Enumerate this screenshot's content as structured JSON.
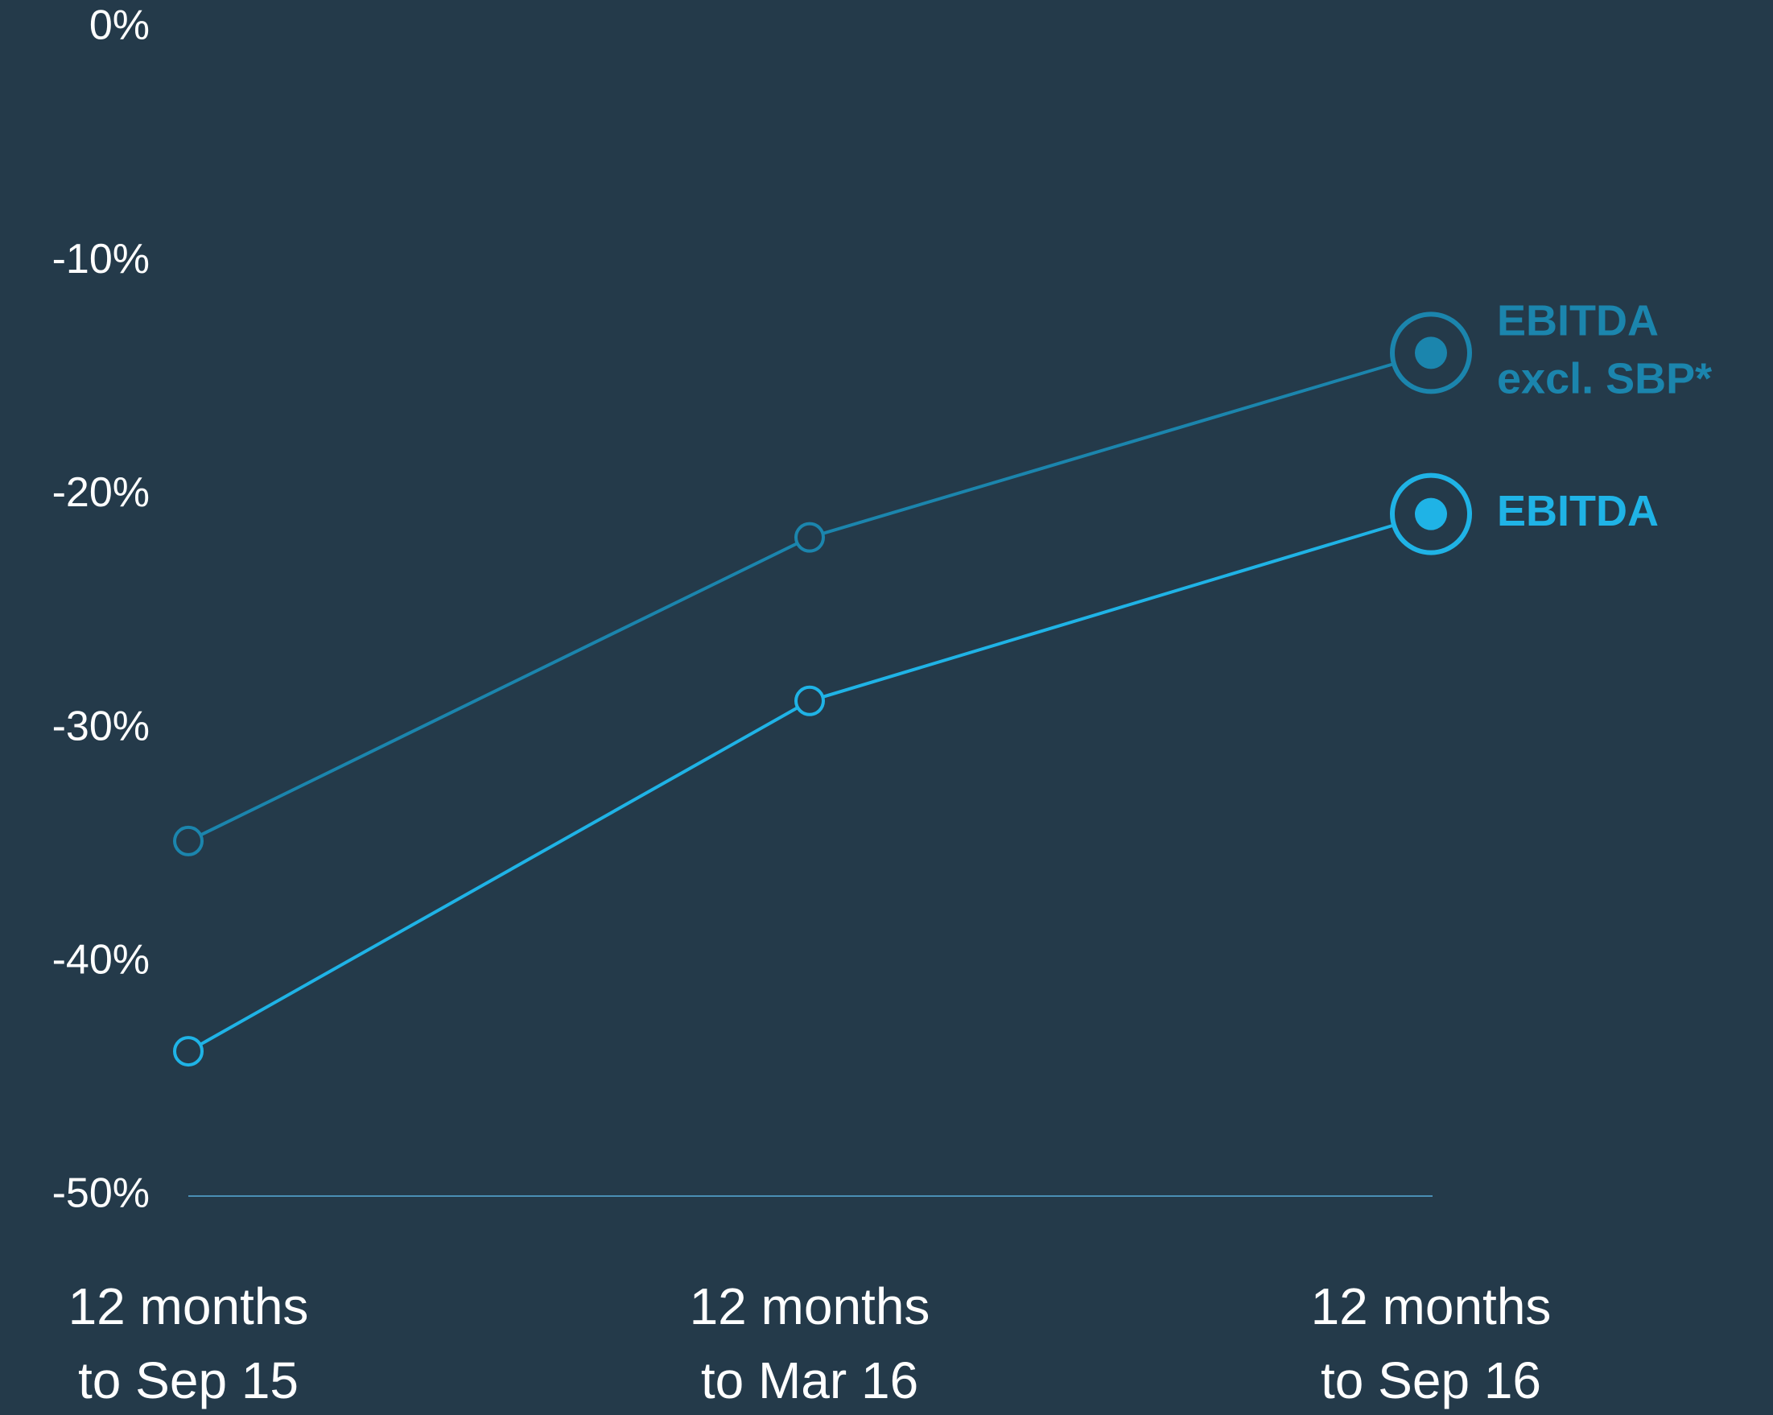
{
  "chart_data": {
    "type": "line",
    "categories": [
      [
        "12 months",
        "to Sep 15"
      ],
      [
        "12 months",
        "to Mar 16"
      ],
      [
        "12 months",
        "to Sep 16"
      ]
    ],
    "yticks": [
      "0%",
      "-10%",
      "-20%",
      "-30%",
      "-40%",
      "-50%"
    ],
    "ytick_values": [
      0,
      -10,
      -20,
      -30,
      -40,
      -50
    ],
    "ylim": [
      -50,
      0
    ],
    "series": [
      {
        "name": [
          "EBITDA",
          "excl. SBP*"
        ],
        "values": [
          -34.8,
          -21.8,
          -13.9
        ],
        "color": "#1b85ad"
      },
      {
        "name": [
          "EBITDA"
        ],
        "values": [
          -43.8,
          -28.8,
          -20.8
        ],
        "color": "#1fb3e6"
      }
    ],
    "colors": {
      "background": "#243a4a",
      "axis": "#4a8fb5",
      "text": "#ffffff"
    }
  }
}
